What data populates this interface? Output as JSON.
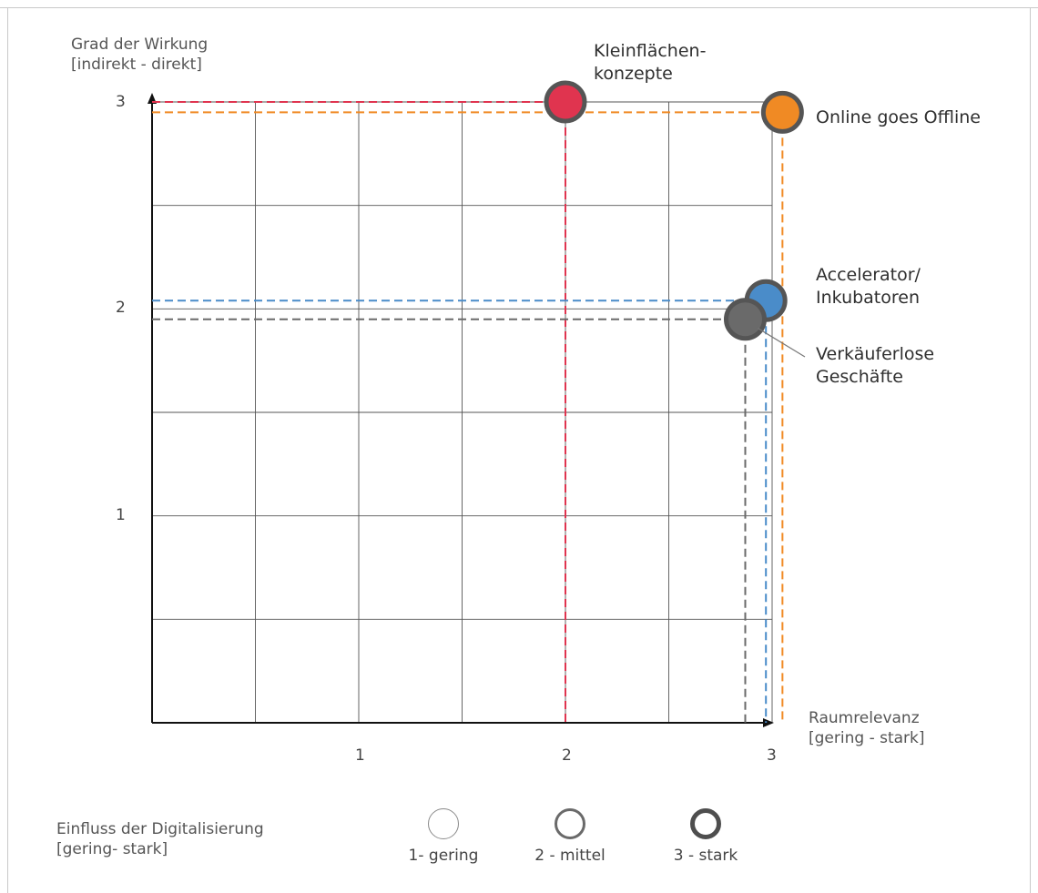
{
  "chart_data": {
    "type": "scatter",
    "title": "",
    "ylabel": "Grad der Wirkung\n[indirekt - direkt]",
    "xlabel": "Raumrelevanz\n[gering - stark]",
    "xlim": [
      0,
      3
    ],
    "ylim": [
      0,
      3
    ],
    "grid": true,
    "x_ticks": [
      "1",
      "2",
      "3"
    ],
    "y_ticks": [
      "1",
      "2",
      "3"
    ],
    "points": [
      {
        "label": "Kleinflächen-\nkonzepte",
        "x": 2.0,
        "y": 3.0,
        "influence": 3,
        "color": "#e0344f"
      },
      {
        "label": "Online goes Offline",
        "x": 3.05,
        "y": 2.95,
        "influence": 3,
        "color": "#f08a24"
      },
      {
        "label": "Accelerator/\nInkubatoren",
        "x": 2.97,
        "y": 2.04,
        "influence": 3,
        "color": "#4a8cc9"
      },
      {
        "label": "Verkäuferlose\nGeschäfte",
        "x": 2.87,
        "y": 1.95,
        "influence": 3,
        "color": "#6a6a6a"
      }
    ],
    "legend": {
      "title": "Einfluss der Digitalisierung\n[gering- stark]",
      "items": [
        {
          "label": "1- gering",
          "level": 1
        },
        {
          "label": "2 - mittel",
          "level": 2
        },
        {
          "label": "3 - stark",
          "level": 3
        }
      ]
    }
  }
}
